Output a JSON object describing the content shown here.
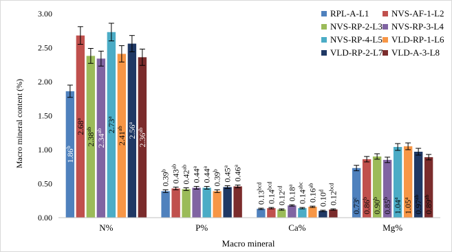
{
  "chart_data": {
    "type": "bar",
    "title": "",
    "xlabel": "Macro mineral",
    "ylabel": "Macro mineral content (%)",
    "ylim": [
      0,
      3.0
    ],
    "ytick_step": 0.5,
    "ytick_labels": [
      "0.00",
      "0.50",
      "1.00",
      "1.50",
      "2.00",
      "2.50",
      "3.00"
    ],
    "grid": false,
    "legend_position": "top-right",
    "categories": [
      "N%",
      "P%",
      "Ca%",
      "Mg%"
    ],
    "series": [
      {
        "name": "RPL-A-L1",
        "color": "#4f81bd",
        "values": [
          1.86,
          0.39,
          0.13,
          0.73
        ],
        "errors": [
          0.09,
          0.02,
          0.01,
          0.04
        ],
        "labels": [
          "1.86",
          "0.39",
          "0.13",
          "0.73"
        ],
        "sups": [
          "b",
          "b",
          "bcd",
          "c"
        ]
      },
      {
        "name": "NVS-AF-1-L2",
        "color": "#c0504d",
        "values": [
          2.68,
          0.43,
          0.14,
          0.86
        ],
        "errors": [
          0.13,
          0.02,
          0.01,
          0.04
        ],
        "labels": [
          "2.68",
          "0.43",
          "0.14",
          "0.86"
        ],
        "sups": [
          "a",
          "ab",
          "bcd",
          "b"
        ]
      },
      {
        "name": "NVS-RP-2-L3",
        "color": "#9bbb59",
        "values": [
          2.38,
          0.42,
          0.12,
          0.9
        ],
        "errors": [
          0.11,
          0.02,
          0.01,
          0.04
        ],
        "labels": [
          "2.38",
          "0.42",
          "0.12",
          "0.90"
        ],
        "sups": [
          "ab",
          "ab",
          "cd",
          "b"
        ]
      },
      {
        "name": "NVS-RP-3-L4",
        "color": "#8064a2",
        "values": [
          2.34,
          0.44,
          0.18,
          0.85
        ],
        "errors": [
          0.11,
          0.02,
          0.01,
          0.04
        ],
        "labels": [
          "2.34",
          "0.44",
          "0.18",
          "0.85"
        ],
        "sups": [
          "ab",
          "a",
          "a",
          "b"
        ]
      },
      {
        "name": "NVS-RP-4-L5",
        "color": "#4bacc6",
        "values": [
          2.73,
          0.44,
          0.14,
          1.04
        ],
        "errors": [
          0.13,
          0.02,
          0.01,
          0.05
        ],
        "labels": [
          "2.73",
          "0.44",
          "0.14",
          "1.04"
        ],
        "sups": [
          "a",
          "a",
          "abc",
          "a"
        ]
      },
      {
        "name": "VLD-RP-1-L6",
        "color": "#f79646",
        "values": [
          2.41,
          0.39,
          0.16,
          1.05
        ],
        "errors": [
          0.12,
          0.02,
          0.01,
          0.05
        ],
        "labels": [
          "2.41",
          "0.39",
          "0.16",
          "1.05"
        ],
        "sups": [
          "ab",
          "b",
          "ab",
          "a"
        ]
      },
      {
        "name": "VLD-RP-2-L7",
        "color": "#1f3864",
        "values": [
          2.56,
          0.45,
          0.1,
          0.97
        ],
        "errors": [
          0.12,
          0.02,
          0.01,
          0.05
        ],
        "labels": [
          "2.56",
          "0.45",
          "0.10",
          "0.97"
        ],
        "sups": [
          "a",
          "a",
          "d",
          "ab"
        ]
      },
      {
        "name": "VLD-A-3-L8",
        "color": "#7b2c2c",
        "values": [
          2.36,
          0.46,
          0.12,
          0.89
        ],
        "errors": [
          0.12,
          0.02,
          0.01,
          0.04
        ],
        "labels": [
          "2.36",
          "0.46",
          "0.12",
          "0.89"
        ],
        "sups": [
          "ab",
          "a",
          "bcd",
          "ab"
        ]
      }
    ]
  }
}
